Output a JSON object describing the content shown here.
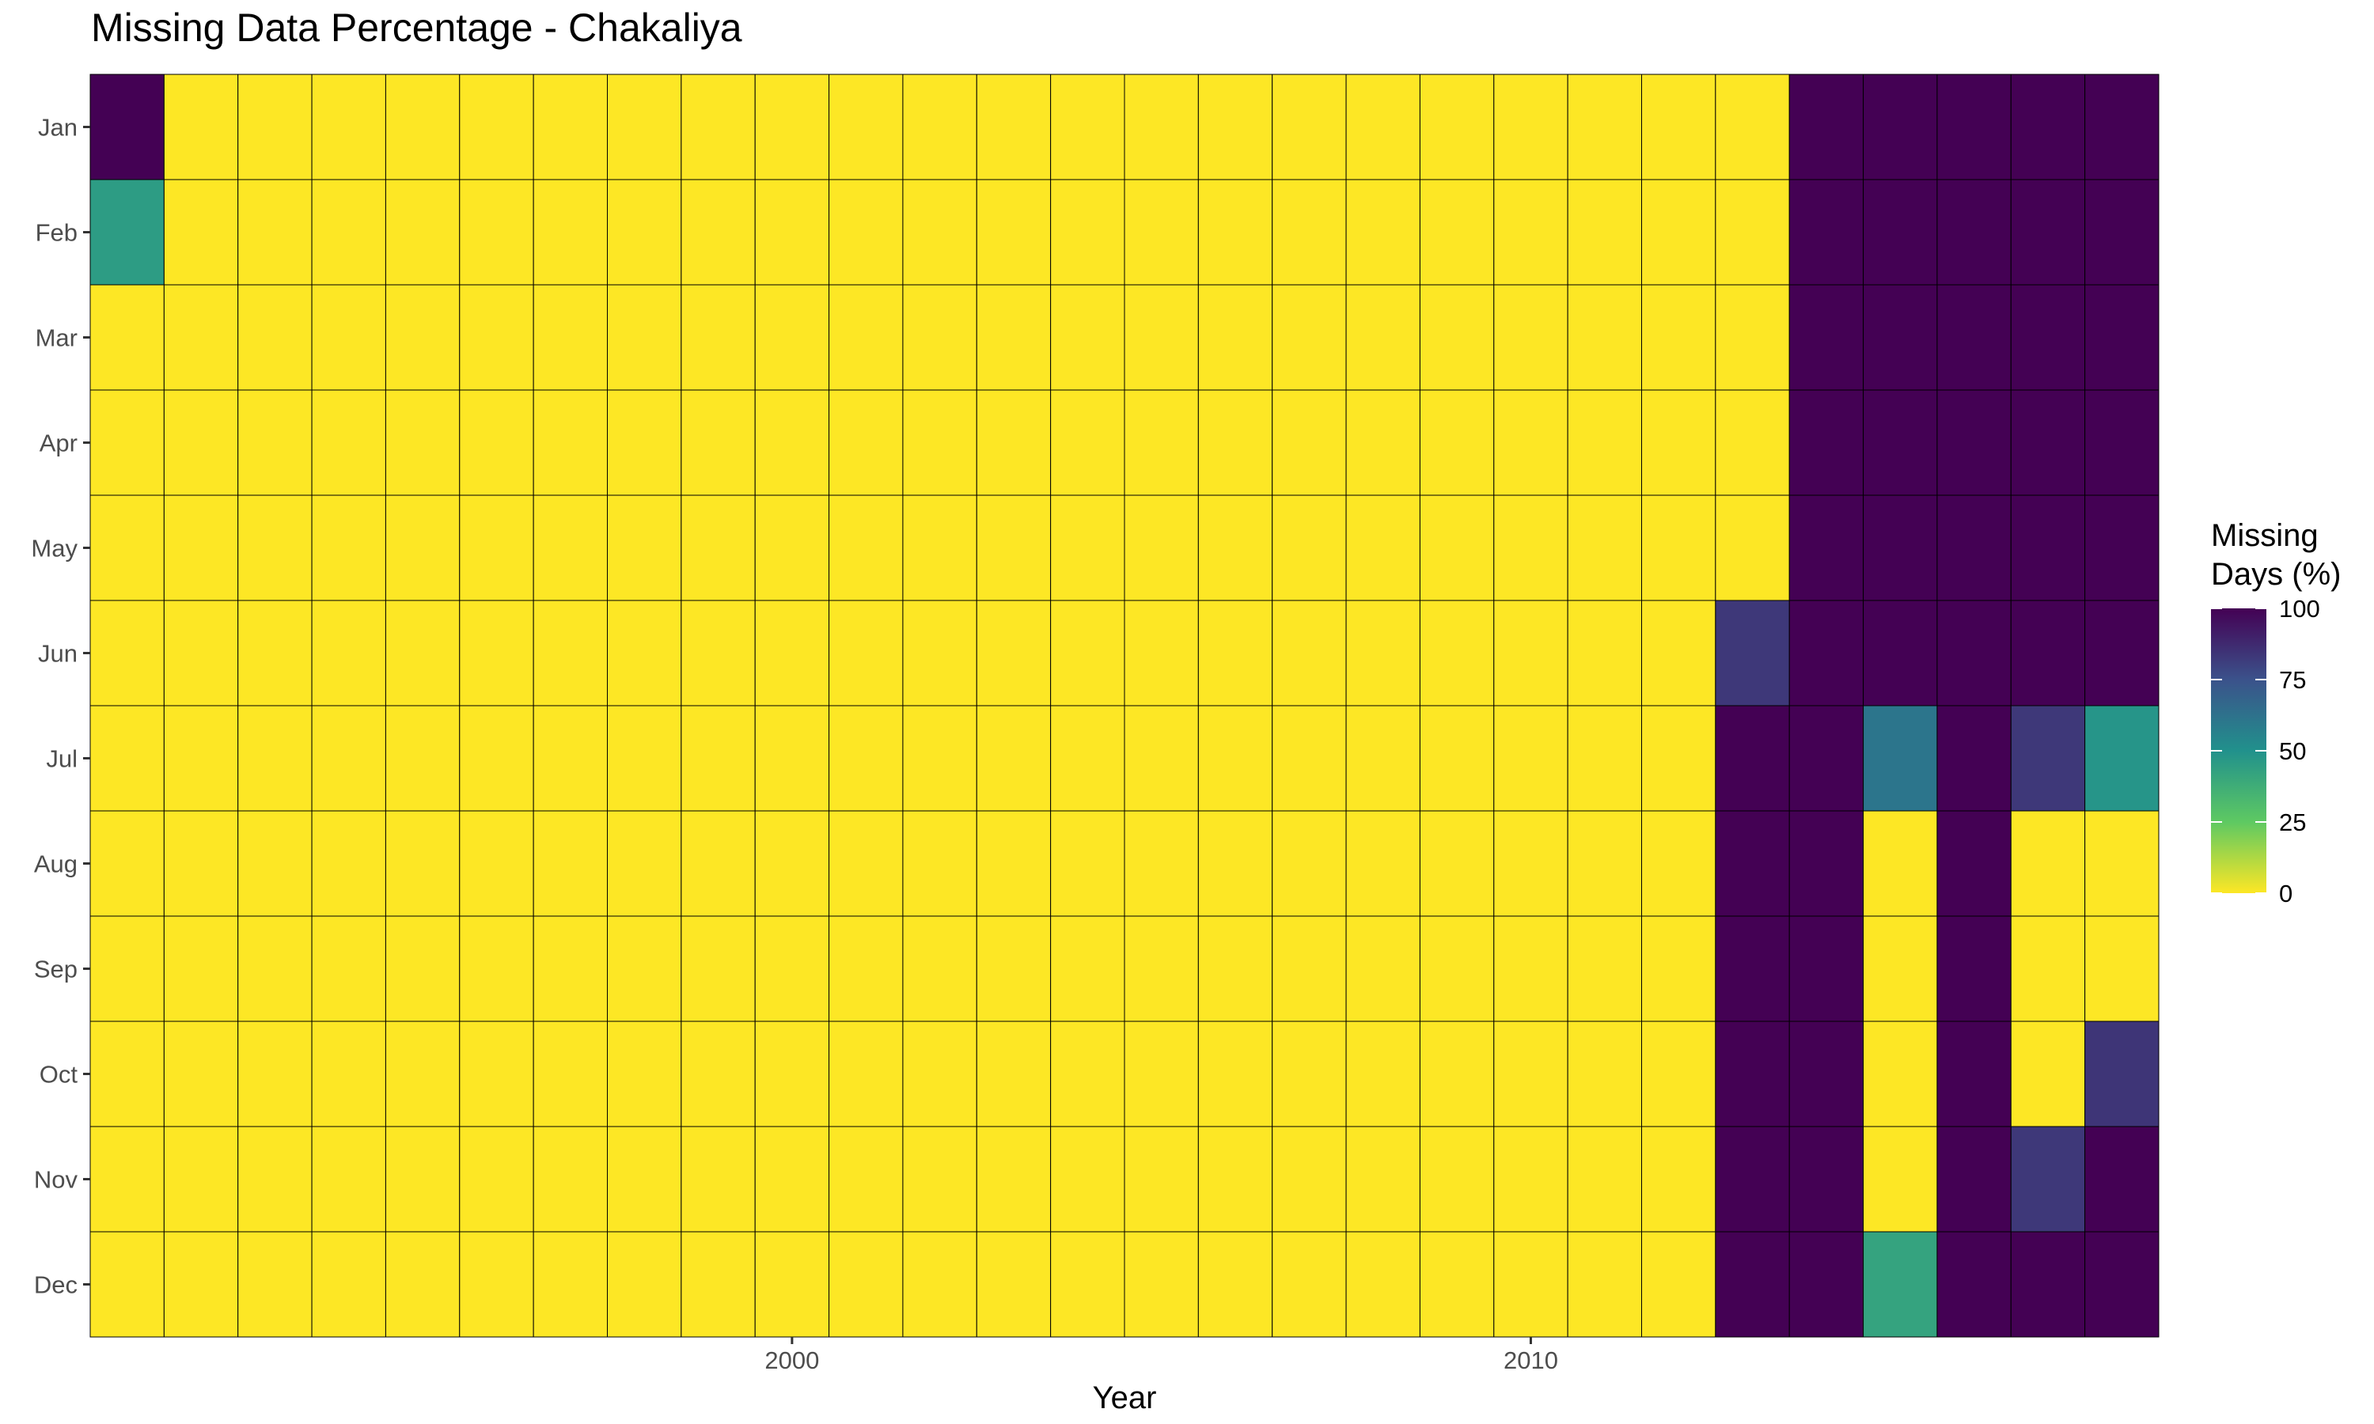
{
  "chart_data": {
    "type": "heatmap",
    "title": "Missing Data Percentage - Chakaliya",
    "xlabel": "Year",
    "ylabel": "",
    "x": [
      1991,
      1992,
      1993,
      1994,
      1995,
      1996,
      1997,
      1998,
      1999,
      2000,
      2001,
      2002,
      2003,
      2004,
      2005,
      2006,
      2007,
      2008,
      2009,
      2010,
      2011,
      2012,
      2013,
      2014,
      2015,
      2016,
      2017,
      2018
    ],
    "x_ticks": [
      2000,
      2010
    ],
    "y": [
      "Jan",
      "Feb",
      "Mar",
      "Apr",
      "May",
      "Jun",
      "Jul",
      "Aug",
      "Sep",
      "Oct",
      "Nov",
      "Dec"
    ],
    "values": [
      [
        100,
        0,
        0,
        0,
        0,
        0,
        0,
        0,
        0,
        0,
        0,
        0,
        0,
        0,
        0,
        0,
        0,
        0,
        0,
        0,
        0,
        0,
        0,
        100,
        100,
        100,
        100,
        100
      ],
      [
        45,
        0,
        0,
        0,
        0,
        0,
        0,
        0,
        0,
        0,
        0,
        0,
        0,
        0,
        0,
        0,
        0,
        0,
        0,
        0,
        0,
        0,
        0,
        100,
        100,
        100,
        100,
        100
      ],
      [
        0,
        0,
        0,
        0,
        0,
        0,
        0,
        0,
        0,
        0,
        0,
        0,
        0,
        0,
        0,
        0,
        0,
        0,
        0,
        0,
        0,
        0,
        0,
        100,
        100,
        100,
        100,
        100
      ],
      [
        0,
        0,
        0,
        0,
        0,
        0,
        0,
        0,
        0,
        0,
        0,
        0,
        0,
        0,
        0,
        0,
        0,
        0,
        0,
        0,
        0,
        0,
        0,
        100,
        100,
        100,
        100,
        100
      ],
      [
        0,
        0,
        0,
        0,
        0,
        0,
        0,
        0,
        0,
        0,
        0,
        0,
        0,
        0,
        0,
        0,
        0,
        0,
        0,
        0,
        0,
        0,
        0,
        100,
        100,
        100,
        100,
        100
      ],
      [
        0,
        0,
        0,
        0,
        0,
        0,
        0,
        0,
        0,
        0,
        0,
        0,
        0,
        0,
        0,
        0,
        0,
        0,
        0,
        0,
        0,
        0,
        83,
        100,
        100,
        100,
        100,
        100
      ],
      [
        0,
        0,
        0,
        0,
        0,
        0,
        0,
        0,
        0,
        0,
        0,
        0,
        0,
        0,
        0,
        0,
        0,
        0,
        0,
        0,
        0,
        0,
        100,
        100,
        61,
        100,
        83,
        48
      ],
      [
        0,
        0,
        0,
        0,
        0,
        0,
        0,
        0,
        0,
        0,
        0,
        0,
        0,
        0,
        0,
        0,
        0,
        0,
        0,
        0,
        0,
        0,
        100,
        100,
        0,
        100,
        0,
        0
      ],
      [
        0,
        0,
        0,
        0,
        0,
        0,
        0,
        0,
        0,
        0,
        0,
        0,
        0,
        0,
        0,
        0,
        0,
        0,
        0,
        0,
        0,
        0,
        100,
        100,
        0,
        100,
        0,
        0
      ],
      [
        0,
        0,
        0,
        0,
        0,
        0,
        0,
        0,
        0,
        0,
        0,
        0,
        0,
        0,
        0,
        0,
        0,
        0,
        0,
        0,
        0,
        0,
        100,
        100,
        0,
        100,
        0,
        84
      ],
      [
        0,
        0,
        0,
        0,
        0,
        0,
        0,
        0,
        0,
        0,
        0,
        0,
        0,
        0,
        0,
        0,
        0,
        0,
        0,
        0,
        0,
        0,
        100,
        100,
        0,
        100,
        83,
        100
      ],
      [
        0,
        0,
        0,
        0,
        0,
        0,
        0,
        0,
        0,
        0,
        0,
        0,
        0,
        0,
        0,
        0,
        0,
        0,
        0,
        0,
        0,
        0,
        100,
        100,
        42,
        100,
        100,
        100
      ]
    ],
    "color_scale": {
      "name": "viridis-reversed",
      "min": 0,
      "max": 100,
      "stops": [
        "#fde725",
        "#5ec962",
        "#21918c",
        "#3b528b",
        "#440154"
      ]
    },
    "legend": {
      "title_lines": [
        "Missing",
        "Days (%)"
      ],
      "ticks": [
        0,
        25,
        50,
        75,
        100
      ],
      "position": "right"
    },
    "grid": false
  }
}
